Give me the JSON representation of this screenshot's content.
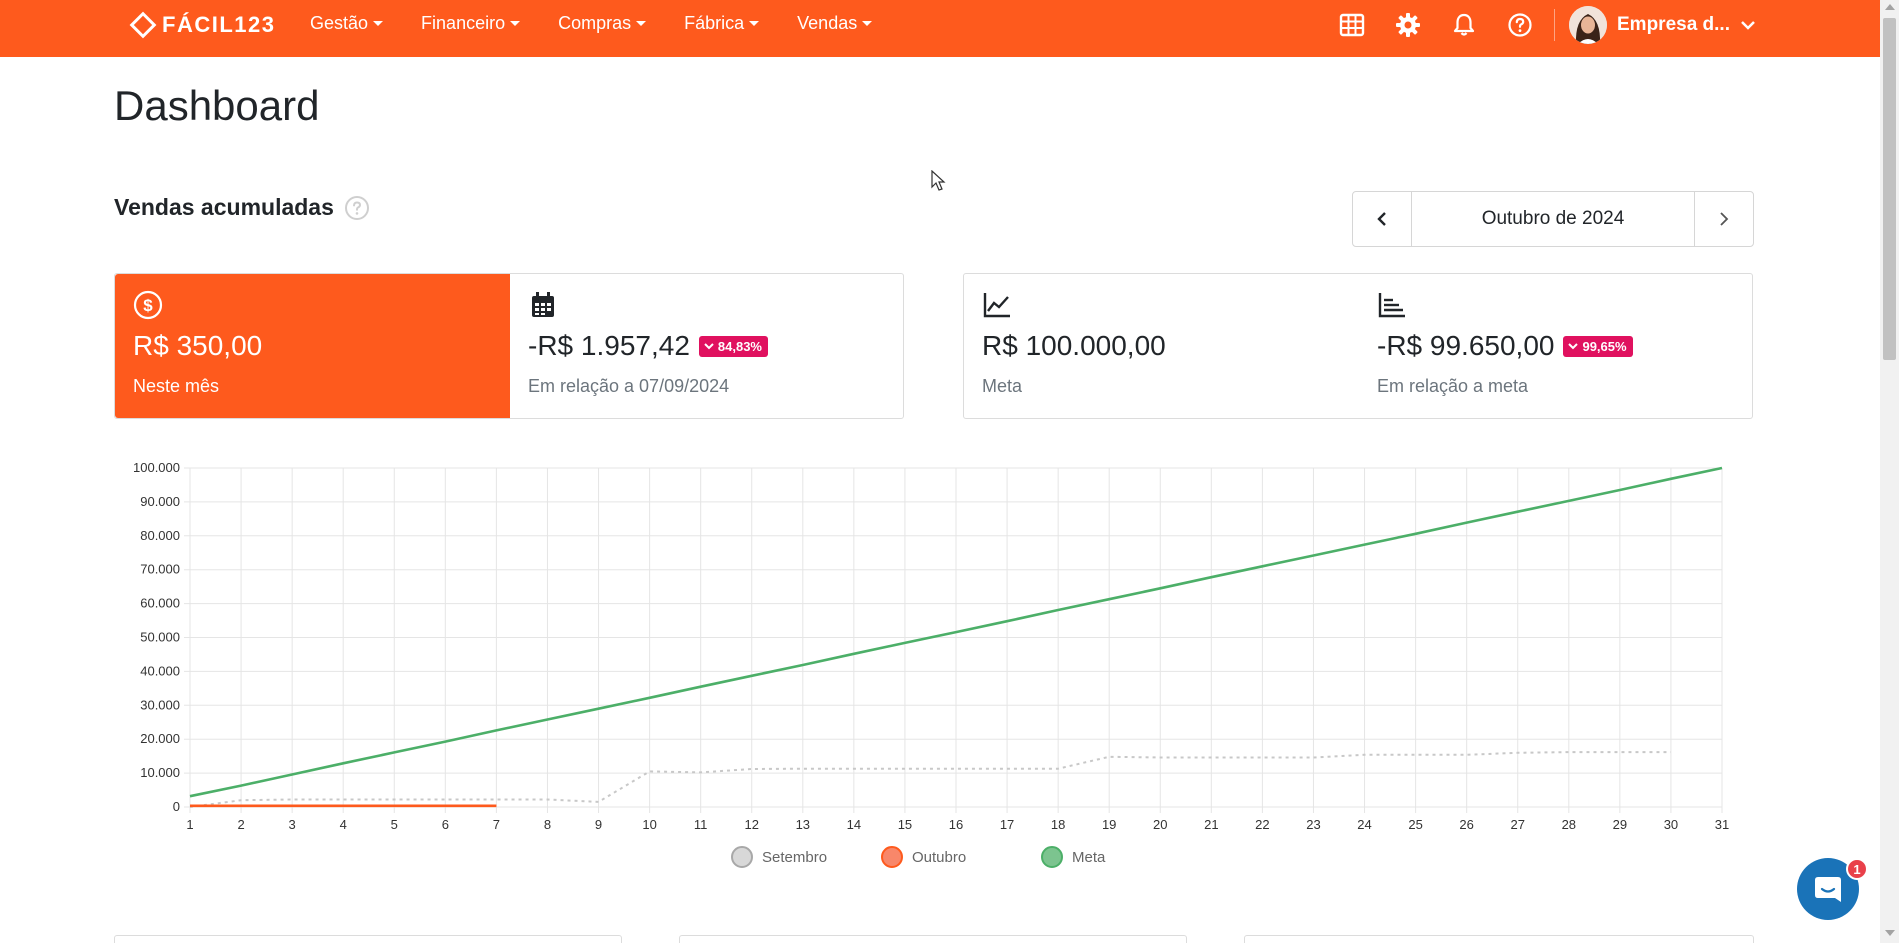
{
  "app": {
    "brand": "FÁCIL123",
    "accent": "#fe5a1d"
  },
  "nav": {
    "items": [
      {
        "label": "Gestão"
      },
      {
        "label": "Financeiro"
      },
      {
        "label": "Compras"
      },
      {
        "label": "Fábrica"
      },
      {
        "label": "Vendas"
      }
    ],
    "icons": [
      "grid-icon",
      "gear-icon",
      "bell-icon",
      "help-circle-icon"
    ],
    "company": "Empresa d..."
  },
  "page": {
    "title": "Dashboard"
  },
  "section": {
    "title": "Vendas acumuladas"
  },
  "month_picker": {
    "label": "Outubro de 2024"
  },
  "cards": {
    "this_month": {
      "value": "R$ 350,00",
      "label": "Neste mês"
    },
    "vs_previous": {
      "value": "-R$ 1.957,42",
      "badge": "84,83%",
      "label": "Em relação a 07/09/2024"
    },
    "goal": {
      "value": "R$ 100.000,00",
      "label": "Meta"
    },
    "vs_goal": {
      "value": "-R$ 99.650,00",
      "badge": "99,65%",
      "label": "Em relação a meta"
    }
  },
  "chart_data": {
    "type": "line",
    "x": [
      1,
      2,
      3,
      4,
      5,
      6,
      7,
      8,
      9,
      10,
      11,
      12,
      13,
      14,
      15,
      16,
      17,
      18,
      19,
      20,
      21,
      22,
      23,
      24,
      25,
      26,
      27,
      28,
      29,
      30,
      31
    ],
    "ylim": [
      0,
      100000
    ],
    "yticks": [
      0,
      10000,
      20000,
      30000,
      40000,
      50000,
      60000,
      70000,
      80000,
      90000,
      100000
    ],
    "ytick_labels": [
      "0",
      "10.000",
      "20.000",
      "30.000",
      "40.000",
      "50.000",
      "60.000",
      "70.000",
      "80.000",
      "90.000",
      "100.000"
    ],
    "grid": true,
    "legend_position": "bottom",
    "series": [
      {
        "name": "Setembro",
        "color": "#c8c8c8",
        "style": "dotted",
        "values": [
          0,
          2000,
          2200,
          2200,
          2200,
          2200,
          2200,
          2200,
          1500,
          10500,
          10200,
          11200,
          11300,
          11300,
          11300,
          11300,
          11300,
          11300,
          14800,
          14600,
          14600,
          14600,
          14600,
          15400,
          15400,
          15400,
          16000,
          16200,
          16200,
          16200,
          null
        ]
      },
      {
        "name": "Outubro",
        "color": "#fe5a1d",
        "style": "solid",
        "values": [
          350,
          350,
          350,
          350,
          350,
          350,
          350,
          null,
          null,
          null,
          null,
          null,
          null,
          null,
          null,
          null,
          null,
          null,
          null,
          null,
          null,
          null,
          null,
          null,
          null,
          null,
          null,
          null,
          null,
          null,
          null
        ]
      },
      {
        "name": "Meta",
        "color": "#4caf68",
        "style": "solid",
        "values": [
          3200,
          6300,
          9600,
          12900,
          16100,
          19300,
          22600,
          25800,
          29000,
          32200,
          35500,
          38700,
          41900,
          45200,
          48400,
          51600,
          54800,
          58100,
          61300,
          64500,
          67800,
          71000,
          74200,
          77400,
          80600,
          83900,
          87100,
          90300,
          93500,
          96800,
          100000
        ]
      }
    ]
  },
  "chat": {
    "badge": "1"
  }
}
